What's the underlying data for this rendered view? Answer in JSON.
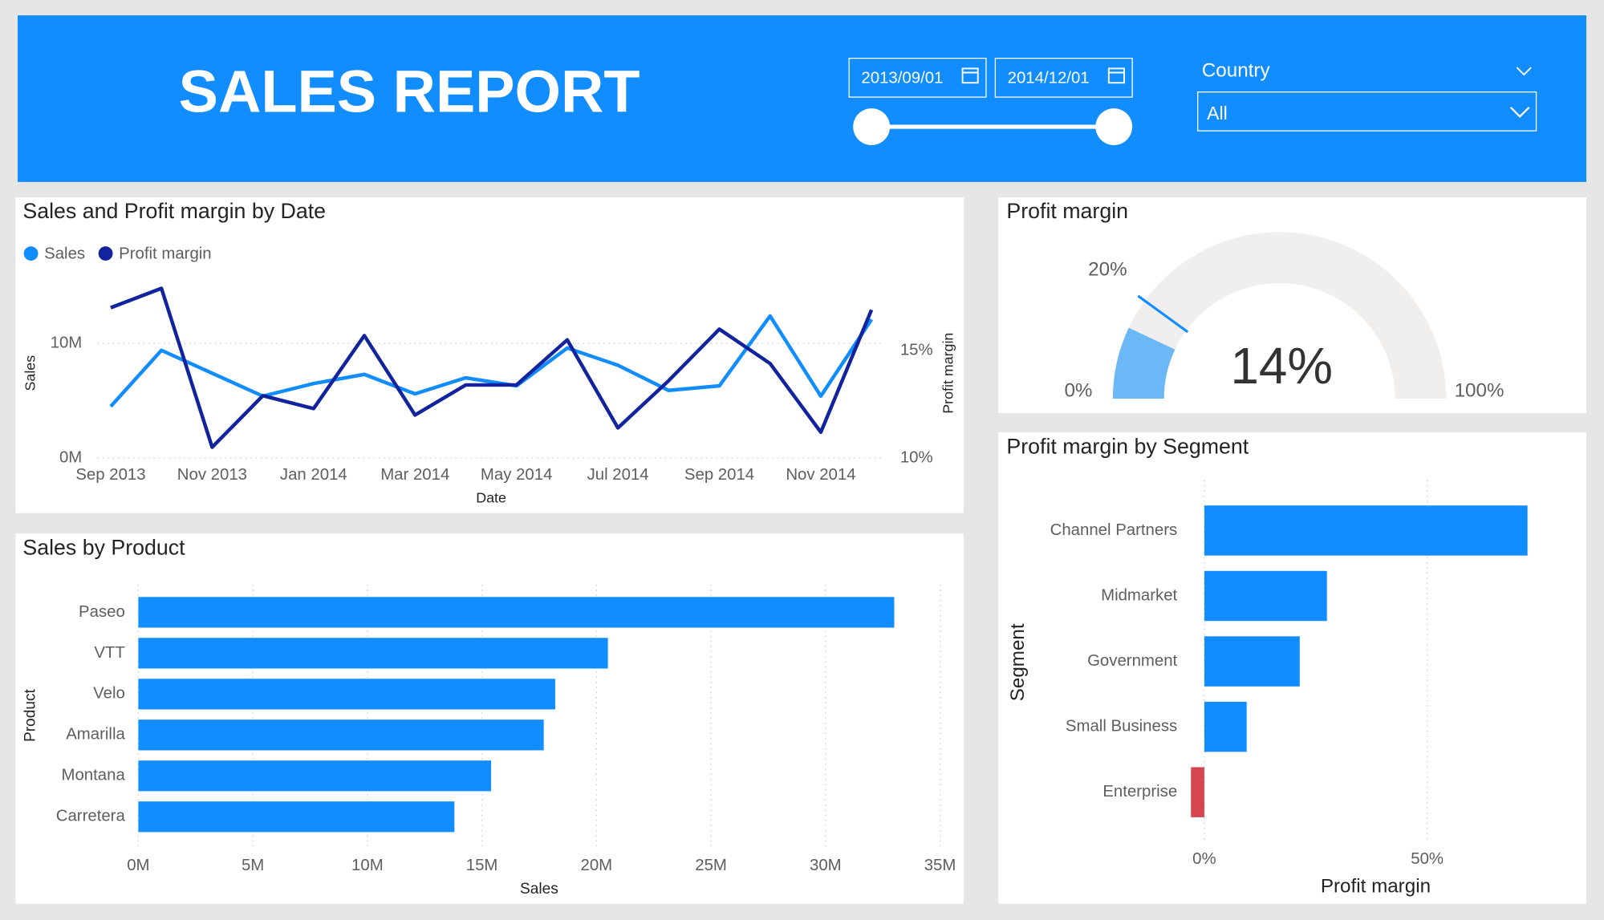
{
  "header": {
    "title": "SALES REPORT",
    "date_start": "2013/09/01",
    "date_end": "2014/12/01",
    "filter_label": "Country",
    "filter_value": "All"
  },
  "chart_data": [
    {
      "type": "line",
      "title": "Sales and Profit margin by Date",
      "x": [
        "Sep 2013",
        null,
        "Nov 2013",
        null,
        "Jan 2014",
        null,
        "Mar 2014",
        null,
        "May 2014",
        null,
        "Jul 2014",
        null,
        "Sep 2014",
        null,
        "Nov 2014",
        null
      ],
      "x_label": "Date",
      "y_label": "Sales",
      "y2_label": "Profit margin",
      "legend": "top-left",
      "grid": true,
      "ylim": [
        0,
        15000000
      ],
      "yticks": [
        {
          "value": 0,
          "label": "0M"
        },
        {
          "value": 10000000,
          "label": "10M"
        }
      ],
      "y2lim": [
        10,
        18
      ],
      "y2ticks": [
        {
          "value": 10,
          "label": "10%"
        },
        {
          "value": 15,
          "label": "15%"
        }
      ],
      "series": [
        {
          "name": "Sales",
          "color": "#118dff",
          "values": [
            4500000,
            9400000,
            7400000,
            5400000,
            6500000,
            7300000,
            5600000,
            7000000,
            6300000,
            9600000,
            8100000,
            5900000,
            6300000,
            12400000,
            5400000,
            12100000
          ]
        },
        {
          "name": "Profit margin",
          "color": "#12239e",
          "axis": "y2",
          "values": [
            17.0,
            17.9,
            10.5,
            12.9,
            12.3,
            15.7,
            12.0,
            13.4,
            13.4,
            15.5,
            11.4,
            13.6,
            16.0,
            14.4,
            11.2,
            16.9
          ]
        }
      ]
    },
    {
      "type": "bar",
      "orientation": "horizontal",
      "title": "Sales by Product",
      "categories": [
        "Paseo",
        "VTT",
        "Velo",
        "Amarilla",
        "Montana",
        "Carretera"
      ],
      "values": [
        33000000,
        20500000,
        18200000,
        17700000,
        15400000,
        13800000
      ],
      "color": "#118dff",
      "x_label": "Sales",
      "y_label": "Product",
      "grid": true,
      "xlim": [
        0,
        35000000
      ],
      "xticks": [
        {
          "value": 0,
          "label": "0M"
        },
        {
          "value": 5000000,
          "label": "5M"
        },
        {
          "value": 10000000,
          "label": "10M"
        },
        {
          "value": 15000000,
          "label": "15M"
        },
        {
          "value": 20000000,
          "label": "20M"
        },
        {
          "value": 25000000,
          "label": "25M"
        },
        {
          "value": 30000000,
          "label": "30M"
        },
        {
          "value": 35000000,
          "label": "35M"
        }
      ]
    },
    {
      "type": "gauge",
      "title": "Profit margin",
      "value": 14,
      "value_label": "14%",
      "min": 0,
      "min_label": "0%",
      "max": 100,
      "max_label": "100%",
      "target": 20,
      "target_label": "20%",
      "color": "#6cb8f6",
      "track_color": "#f0efee",
      "target_color": "#118dff"
    },
    {
      "type": "bar",
      "orientation": "horizontal",
      "title": "Profit margin by Segment",
      "categories": [
        "Channel Partners",
        "Midmarket",
        "Government",
        "Small Business",
        "Enterprise"
      ],
      "values": [
        72.5,
        27.5,
        21.4,
        9.5,
        -3.0
      ],
      "colors": [
        "#118dff",
        "#118dff",
        "#118dff",
        "#118dff",
        "#d64550"
      ],
      "x_label": "Profit margin",
      "y_label": "Segment",
      "grid": true,
      "xlim": [
        -4,
        74
      ],
      "xticks": [
        {
          "value": 0,
          "label": "0%"
        },
        {
          "value": 50,
          "label": "50%"
        }
      ]
    }
  ]
}
